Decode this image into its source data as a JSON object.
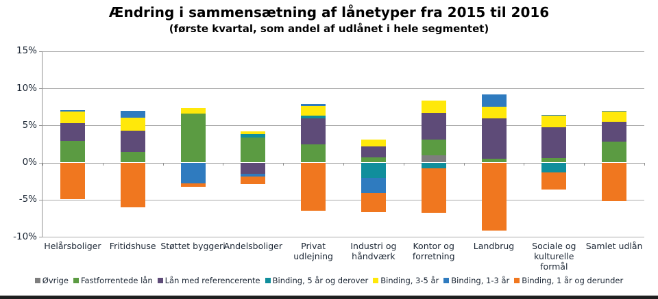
{
  "title": "Ændring i sammensætning af lånetyper fra 2015 til 2016",
  "subtitle": "(første kvartal, som andel af udlånet i hele segmentet)",
  "chart_data": {
    "type": "bar",
    "stacked": true,
    "title": "Ændring i sammensætning af lånetyper fra 2015 til 2016",
    "subtitle": "(første kvartal, som andel af udlånet i hele segmentet)",
    "xlabel": "",
    "ylabel": "",
    "ylim": [
      -10,
      15
    ],
    "ytick_step": 5,
    "yticks": [
      15,
      10,
      5,
      0,
      -5,
      -10
    ],
    "ytick_labels": [
      "15%",
      "10%",
      "5%",
      "0%",
      "-5%",
      "-10%"
    ],
    "grid": true,
    "legend_position": "bottom",
    "categories": [
      "Helårsboliger",
      "Fritidshuse",
      "Støttet byggeri",
      "Andelsboliger",
      "Privat\nudlejning",
      "Industri og\nhåndværk",
      "Kontor og\nforretning",
      "Landbrug",
      "Sociale og\nkulturelle\nformål",
      "Samlet udlån"
    ],
    "series": [
      {
        "name": "Øvrige",
        "color": "#7e7e7e",
        "values": [
          0,
          0,
          0,
          0,
          0,
          0,
          0.95,
          0,
          0,
          0
        ]
      },
      {
        "name": "Fastforrentede lån",
        "color": "#5b9b42",
        "values": [
          2.9,
          1.4,
          6.6,
          3.4,
          2.4,
          0.7,
          2.15,
          0.5,
          0.6,
          2.8
        ]
      },
      {
        "name": "Lån med referencerente",
        "color": "#5e4b78",
        "values": [
          2.4,
          2.9,
          0,
          -1.5,
          3.5,
          1.5,
          3.6,
          5.4,
          4.15,
          2.65
        ]
      },
      {
        "name": "Binding, 5 år og derover",
        "color": "#108e9c",
        "values": [
          0,
          0,
          0,
          0.45,
          0.4,
          -2.1,
          -0.75,
          0,
          -1.3,
          0
        ]
      },
      {
        "name": "Binding, 3-5 år",
        "color": "#ffe80a",
        "values": [
          1.55,
          1.7,
          0.75,
          0.3,
          1.3,
          0.85,
          1.6,
          1.65,
          1.55,
          1.45
        ]
      },
      {
        "name": "Binding, 1-3 år",
        "color": "#2f7bbf",
        "values": [
          0.2,
          0.93,
          -2.8,
          -0.4,
          0.25,
          -2.0,
          0,
          1.65,
          0.15,
          0.1
        ]
      },
      {
        "name": "Binding, 1 år og derunder",
        "color": "#f0771f",
        "values": [
          -4.9,
          -6.0,
          -0.5,
          -1.0,
          -6.5,
          -2.6,
          -6.0,
          -9.15,
          -2.35,
          -5.2
        ]
      }
    ]
  }
}
